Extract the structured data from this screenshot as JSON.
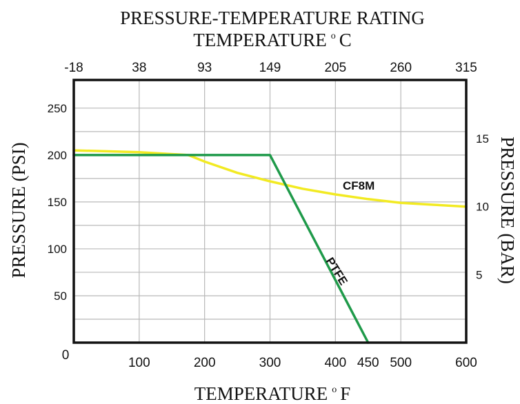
{
  "chart_data": {
    "type": "line",
    "title": "PRESSURE-TEMPERATURE RATING",
    "top_axis": {
      "label": "TEMPERATURE",
      "unit": "C",
      "ticks": [
        {
          "label": "-18",
          "f": 0
        },
        {
          "label": "38",
          "f": 100
        },
        {
          "label": "93",
          "f": 200
        },
        {
          "label": "149",
          "f": 300
        },
        {
          "label": "205",
          "f": 400
        },
        {
          "label": "260",
          "f": 500
        },
        {
          "label": "315",
          "f": 600
        }
      ]
    },
    "x_axis": {
      "label": "TEMPERATURE",
      "unit": "F",
      "range": [
        0,
        600
      ],
      "ticks": [
        {
          "label": "100",
          "value": 100
        },
        {
          "label": "200",
          "value": 200
        },
        {
          "label": "300",
          "value": 300
        },
        {
          "label": "400",
          "value": 400
        },
        {
          "label": "450",
          "value": 450
        },
        {
          "label": "500",
          "value": 500
        },
        {
          "label": "600",
          "value": 600
        }
      ],
      "origin_label": "0",
      "gridlines": [
        100,
        200,
        300,
        400,
        500
      ]
    },
    "y_axis": {
      "label": "PRESSURE (PSI)",
      "range": [
        0,
        280
      ],
      "ticks": [
        "50",
        "100",
        "150",
        "200",
        "250"
      ],
      "gridlines": [
        25,
        50,
        75,
        100,
        125,
        150,
        175,
        200,
        225,
        250
      ]
    },
    "y2_axis": {
      "label": "PRESSURE (BAR)",
      "ticks": [
        {
          "label": "5",
          "psi": 72.5
        },
        {
          "label": "10",
          "psi": 145
        },
        {
          "label": "15",
          "psi": 217.5
        }
      ]
    },
    "series": [
      {
        "name": "CF8M",
        "color": "#f2ea22",
        "x": [
          0,
          100,
          175,
          200,
          250,
          300,
          350,
          400,
          450,
          500,
          550,
          600
        ],
        "y": [
          205,
          203,
          200,
          193,
          181,
          172,
          164,
          158,
          153,
          149,
          147,
          145
        ]
      },
      {
        "name": "PTFE",
        "color": "#1f9a4a",
        "x": [
          0,
          300,
          450
        ],
        "y": [
          200,
          200,
          0
        ]
      }
    ]
  }
}
